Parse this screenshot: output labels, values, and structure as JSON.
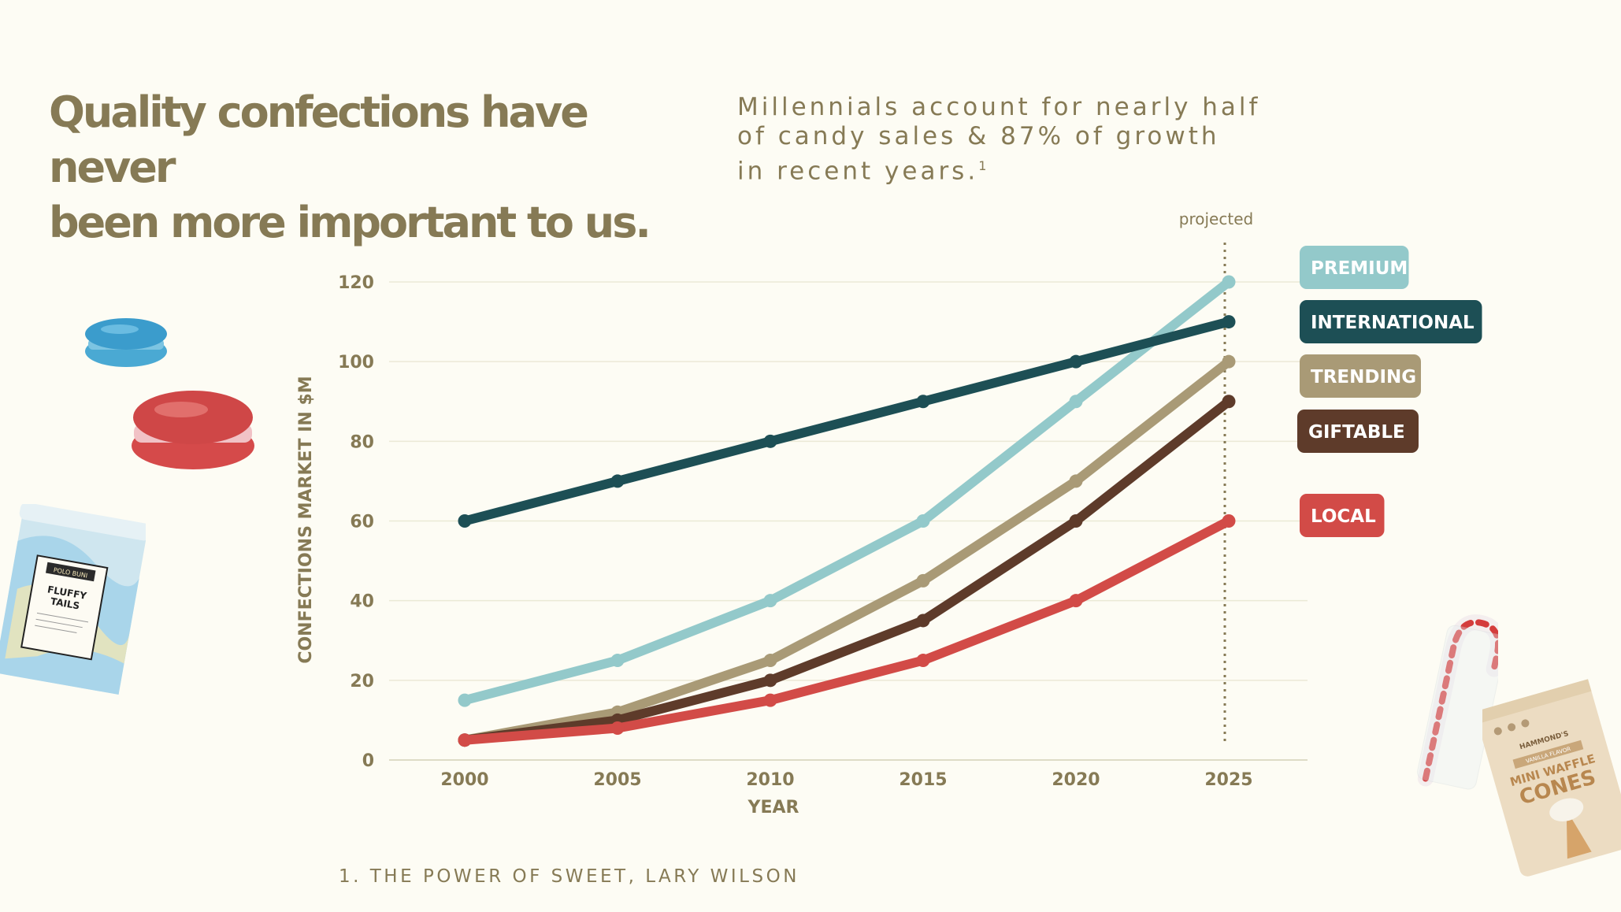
{
  "headline": {
    "line1": "Quality confections have never",
    "line2": "been more important to us."
  },
  "subhead": {
    "line1": "Millennials account for nearly half",
    "line2": "of candy sales & 87% of growth",
    "line3": "in recent years.",
    "sup": "1"
  },
  "footnote": "1. THE POWER OF SWEET, LARY WILSON",
  "chart_data": {
    "type": "line",
    "x": [
      2000,
      2005,
      2010,
      2015,
      2020,
      2025
    ],
    "x_tick_labels": [
      "2000",
      "2005",
      "2010",
      "2015",
      "2020",
      "2025"
    ],
    "y_ticks": [
      0,
      20,
      40,
      60,
      80,
      100,
      120
    ],
    "y_tick_labels": [
      "0",
      "20",
      "40",
      "60",
      "80",
      "100",
      "120"
    ],
    "ylim": [
      0,
      120
    ],
    "xlabel": "YEAR",
    "ylabel": "CONFECTIONS MARKET IN $M",
    "annotation": {
      "label": "projected",
      "x": 2025
    },
    "grid": "horizontal",
    "series": [
      {
        "name": "PREMIUM",
        "color": "#93c9ca",
        "values": [
          15,
          25,
          40,
          60,
          90,
          120
        ]
      },
      {
        "name": "INTERNATIONAL",
        "color": "#1d4f55",
        "values": [
          60,
          70,
          80,
          90,
          100,
          110
        ]
      },
      {
        "name": "TRENDING",
        "color": "#a99a76",
        "values": [
          5,
          12,
          25,
          45,
          70,
          100
        ]
      },
      {
        "name": "GIFTABLE",
        "color": "#5e3b2a",
        "values": [
          5,
          10,
          20,
          35,
          60,
          90
        ]
      },
      {
        "name": "LOCAL",
        "color": "#d24b47",
        "values": [
          5,
          8,
          15,
          25,
          40,
          60
        ]
      }
    ]
  },
  "products": {
    "cotton_candy": {
      "brand": "POLO BUNI",
      "name_line1": "FLUFFY",
      "name_line2": "TAILS"
    },
    "cones": {
      "brand": "HAMMOND'S",
      "flavor": "VANILLA FLAVOR",
      "name_line1": "MINI WAFFLE",
      "name_line2": "CONES"
    }
  },
  "colors": {
    "text": "#867a55",
    "grid": "#ebe9d6",
    "background": "#fdfcf4"
  }
}
